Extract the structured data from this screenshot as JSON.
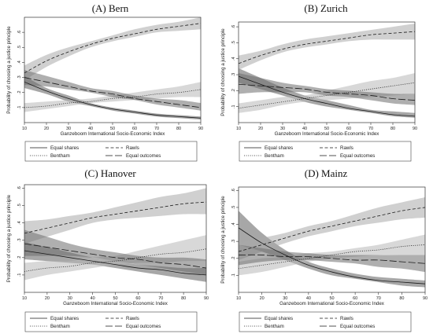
{
  "chart_data": [
    {
      "type": "line",
      "title": "(A) Bern",
      "xlabel": "Ganzeboom International Socio-Economic Index",
      "ylabel": "Probability of choosing a justice principle",
      "x": [
        10,
        20,
        30,
        40,
        50,
        60,
        70,
        80,
        90
      ],
      "xlim": [
        10,
        90
      ],
      "ylim": [
        0,
        0.7
      ],
      "yticks": [
        ".1",
        ".2",
        ".3",
        ".4",
        ".5",
        ".6"
      ],
      "series": [
        {
          "name": "Equal shares",
          "values": [
            0.27,
            0.21,
            0.16,
            0.12,
            0.09,
            0.07,
            0.05,
            0.04,
            0.03
          ]
        },
        {
          "name": "Rawls",
          "values": [
            0.33,
            0.41,
            0.47,
            0.52,
            0.56,
            0.59,
            0.62,
            0.64,
            0.66
          ]
        },
        {
          "name": "Bentham",
          "values": [
            0.1,
            0.11,
            0.13,
            0.14,
            0.16,
            0.17,
            0.19,
            0.2,
            0.22
          ]
        },
        {
          "name": "Equal outcomes",
          "values": [
            0.3,
            0.27,
            0.24,
            0.21,
            0.19,
            0.16,
            0.14,
            0.12,
            0.1
          ]
        }
      ],
      "bands": [
        {
          "lower": [
            0.23,
            0.19,
            0.14,
            0.11,
            0.08,
            0.06,
            0.04,
            0.03,
            0.02
          ],
          "upper": [
            0.31,
            0.23,
            0.18,
            0.13,
            0.1,
            0.08,
            0.06,
            0.05,
            0.04
          ]
        },
        {
          "lower": [
            0.28,
            0.37,
            0.44,
            0.5,
            0.54,
            0.57,
            0.6,
            0.61,
            0.62
          ],
          "upper": [
            0.38,
            0.45,
            0.5,
            0.54,
            0.58,
            0.62,
            0.65,
            0.67,
            0.7
          ]
        },
        {
          "lower": [
            0.07,
            0.09,
            0.11,
            0.13,
            0.14,
            0.15,
            0.16,
            0.17,
            0.17
          ],
          "upper": [
            0.13,
            0.14,
            0.15,
            0.16,
            0.18,
            0.2,
            0.22,
            0.24,
            0.27
          ]
        },
        {
          "lower": [
            0.25,
            0.24,
            0.22,
            0.2,
            0.17,
            0.15,
            0.12,
            0.1,
            0.08
          ],
          "upper": [
            0.35,
            0.31,
            0.27,
            0.23,
            0.21,
            0.18,
            0.16,
            0.15,
            0.13
          ]
        }
      ],
      "legend": [
        "Equal shares",
        "Rawls",
        "Bentham",
        "Equal outcomes"
      ]
    },
    {
      "type": "line",
      "title": "(B) Zurich",
      "xlabel": "Ganzeboom International Socio-Economic Index",
      "ylabel": "Probability of choosing a justice principle",
      "x": [
        10,
        20,
        30,
        40,
        50,
        60,
        70,
        80,
        90
      ],
      "xlim": [
        10,
        90
      ],
      "ylim": [
        0,
        0.63
      ],
      "yticks": [
        ".1",
        ".2",
        ".3",
        ".4",
        ".5",
        ".6"
      ],
      "series": [
        {
          "name": "Equal shares",
          "values": [
            0.29,
            0.24,
            0.19,
            0.15,
            0.12,
            0.09,
            0.07,
            0.05,
            0.04
          ]
        },
        {
          "name": "Rawls",
          "values": [
            0.37,
            0.42,
            0.46,
            0.49,
            0.51,
            0.53,
            0.55,
            0.56,
            0.57
          ]
        },
        {
          "name": "Bentham",
          "values": [
            0.09,
            0.11,
            0.13,
            0.15,
            0.17,
            0.19,
            0.21,
            0.23,
            0.25
          ]
        },
        {
          "name": "Equal outcomes",
          "values": [
            0.24,
            0.23,
            0.22,
            0.21,
            0.19,
            0.18,
            0.17,
            0.15,
            0.14
          ]
        }
      ],
      "bands": [
        {
          "lower": [
            0.25,
            0.21,
            0.17,
            0.13,
            0.1,
            0.08,
            0.06,
            0.04,
            0.03
          ],
          "upper": [
            0.34,
            0.28,
            0.22,
            0.17,
            0.14,
            0.11,
            0.08,
            0.07,
            0.06
          ]
        },
        {
          "lower": [
            0.33,
            0.39,
            0.44,
            0.47,
            0.49,
            0.51,
            0.52,
            0.52,
            0.52
          ],
          "upper": [
            0.42,
            0.45,
            0.49,
            0.52,
            0.54,
            0.56,
            0.58,
            0.6,
            0.62
          ]
        },
        {
          "lower": [
            0.06,
            0.08,
            0.11,
            0.13,
            0.14,
            0.15,
            0.16,
            0.17,
            0.18
          ],
          "upper": [
            0.12,
            0.14,
            0.16,
            0.17,
            0.2,
            0.23,
            0.26,
            0.28,
            0.31
          ]
        },
        {
          "lower": [
            0.18,
            0.19,
            0.19,
            0.19,
            0.17,
            0.16,
            0.14,
            0.12,
            0.11
          ],
          "upper": [
            0.31,
            0.28,
            0.25,
            0.23,
            0.21,
            0.2,
            0.19,
            0.18,
            0.18
          ]
        }
      ],
      "legend": [
        "Equal shares",
        "Rawls",
        "Bentham",
        "Equal outcomes"
      ]
    },
    {
      "type": "line",
      "title": "(C) Hanover",
      "xlabel": "Ganzeboom International Socio-Economic Index",
      "ylabel": "Probability of choosing a justice principle",
      "x": [
        10,
        20,
        30,
        40,
        50,
        60,
        70,
        80,
        90
      ],
      "xlim": [
        10,
        90
      ],
      "ylim": [
        0,
        0.62
      ],
      "yticks": [
        ".1",
        ".2",
        ".3",
        ".4",
        ".5",
        ".6"
      ],
      "series": [
        {
          "name": "Equal shares",
          "values": [
            0.24,
            0.22,
            0.2,
            0.18,
            0.16,
            0.14,
            0.13,
            0.11,
            0.1
          ]
        },
        {
          "name": "Rawls",
          "values": [
            0.34,
            0.37,
            0.4,
            0.43,
            0.45,
            0.47,
            0.49,
            0.51,
            0.52
          ]
        },
        {
          "name": "Bentham",
          "values": [
            0.12,
            0.14,
            0.15,
            0.17,
            0.18,
            0.2,
            0.22,
            0.23,
            0.25
          ]
        },
        {
          "name": "Equal outcomes",
          "values": [
            0.28,
            0.26,
            0.24,
            0.22,
            0.2,
            0.19,
            0.17,
            0.16,
            0.14
          ]
        }
      ],
      "bands": [
        {
          "lower": [
            0.19,
            0.18,
            0.17,
            0.16,
            0.14,
            0.12,
            0.1,
            0.08,
            0.06
          ],
          "upper": [
            0.29,
            0.26,
            0.23,
            0.2,
            0.18,
            0.16,
            0.15,
            0.14,
            0.14
          ]
        },
        {
          "lower": [
            0.28,
            0.32,
            0.36,
            0.4,
            0.42,
            0.43,
            0.44,
            0.45,
            0.45
          ],
          "upper": [
            0.41,
            0.42,
            0.44,
            0.46,
            0.49,
            0.52,
            0.55,
            0.57,
            0.6
          ]
        },
        {
          "lower": [
            0.07,
            0.1,
            0.12,
            0.14,
            0.16,
            0.17,
            0.17,
            0.18,
            0.18
          ],
          "upper": [
            0.17,
            0.18,
            0.18,
            0.2,
            0.21,
            0.24,
            0.27,
            0.3,
            0.33
          ]
        },
        {
          "lower": [
            0.21,
            0.21,
            0.21,
            0.2,
            0.18,
            0.16,
            0.14,
            0.12,
            0.1
          ],
          "upper": [
            0.36,
            0.32,
            0.28,
            0.25,
            0.23,
            0.21,
            0.2,
            0.2,
            0.19
          ]
        }
      ],
      "legend": [
        "Equal shares",
        "Rawls",
        "Bentham",
        "Equal outcomes"
      ]
    },
    {
      "type": "line",
      "title": "(D) Mainz",
      "xlabel": "Ganzeboom International Socio-Economic Index",
      "ylabel": "Probability of choosing a justice principle",
      "x": [
        10,
        20,
        30,
        40,
        50,
        60,
        70,
        80,
        90
      ],
      "xlim": [
        10,
        90
      ],
      "ylim": [
        0,
        0.62
      ],
      "yticks": [
        ".1",
        ".2",
        ".3",
        ".4",
        ".5",
        ".6"
      ],
      "series": [
        {
          "name": "Equal shares",
          "values": [
            0.38,
            0.29,
            0.22,
            0.16,
            0.12,
            0.09,
            0.07,
            0.06,
            0.05
          ]
        },
        {
          "name": "Rawls",
          "values": [
            0.24,
            0.28,
            0.32,
            0.36,
            0.39,
            0.42,
            0.45,
            0.48,
            0.5
          ]
        },
        {
          "name": "Bentham",
          "values": [
            0.14,
            0.16,
            0.18,
            0.2,
            0.22,
            0.24,
            0.25,
            0.27,
            0.28
          ]
        },
        {
          "name": "Equal outcomes",
          "values": [
            0.22,
            0.22,
            0.21,
            0.21,
            0.2,
            0.19,
            0.19,
            0.18,
            0.17
          ]
        }
      ],
      "bands": [
        {
          "lower": [
            0.28,
            0.24,
            0.19,
            0.14,
            0.1,
            0.08,
            0.06,
            0.04,
            0.03
          ],
          "upper": [
            0.48,
            0.35,
            0.25,
            0.18,
            0.14,
            0.11,
            0.09,
            0.08,
            0.07
          ]
        },
        {
          "lower": [
            0.19,
            0.24,
            0.29,
            0.33,
            0.36,
            0.39,
            0.41,
            0.43,
            0.44
          ],
          "upper": [
            0.29,
            0.32,
            0.35,
            0.39,
            0.42,
            0.46,
            0.5,
            0.53,
            0.56
          ]
        },
        {
          "lower": [
            0.1,
            0.12,
            0.15,
            0.18,
            0.2,
            0.21,
            0.22,
            0.22,
            0.22
          ],
          "upper": [
            0.18,
            0.2,
            0.21,
            0.23,
            0.24,
            0.26,
            0.28,
            0.31,
            0.34
          ]
        },
        {
          "lower": [
            0.16,
            0.18,
            0.19,
            0.19,
            0.18,
            0.17,
            0.15,
            0.14,
            0.12
          ],
          "upper": [
            0.28,
            0.26,
            0.24,
            0.23,
            0.22,
            0.22,
            0.22,
            0.22,
            0.22
          ]
        }
      ],
      "legend": [
        "Equal shares",
        "Rawls",
        "Bentham",
        "Equal outcomes"
      ]
    }
  ],
  "styles": {
    "band_colors": [
      "#5f5f5f",
      "#a9a9a9",
      "#b8b8b8",
      "#6e6e6e"
    ],
    "line_color": "#1a1a1a",
    "dash_patterns": [
      "none",
      "4 2.5",
      "1 1.6",
      "9 3"
    ]
  }
}
